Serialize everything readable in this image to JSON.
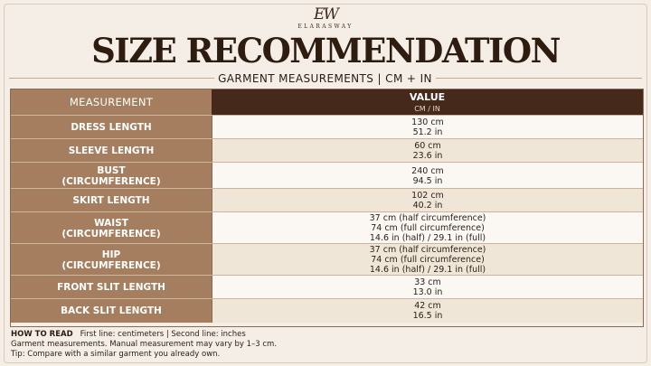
{
  "brand": {
    "monogram": "EW",
    "name": "ELARASWAY"
  },
  "title": "SIZE RECOMMENDATION",
  "subtitle": "GARMENT MEASUREMENTS | CM + IN",
  "table": {
    "col_measurement": "MEASUREMENT",
    "col_value": "VALUE",
    "col_value_unit": "CM / IN",
    "rows": [
      {
        "measurement": [
          "DRESS LENGTH"
        ],
        "values": [
          "130 cm",
          "51.2 in"
        ]
      },
      {
        "measurement": [
          "SLEEVE LENGTH"
        ],
        "values": [
          "60 cm",
          "23.6 in"
        ]
      },
      {
        "measurement": [
          "BUST",
          "(CIRCUMFERENCE)"
        ],
        "values": [
          "240 cm",
          "94.5 in"
        ]
      },
      {
        "measurement": [
          "SKIRT LENGTH"
        ],
        "values": [
          "102 cm",
          "40.2 in"
        ]
      },
      {
        "measurement": [
          "WAIST",
          "(CIRCUMFERENCE)"
        ],
        "values": [
          "37 cm (half circumference)",
          "74 cm (full circumference)",
          "14.6 in (half)  /  29.1 in (full)"
        ]
      },
      {
        "measurement": [
          "HIP",
          "(CIRCUMFERENCE)"
        ],
        "values": [
          "37 cm (half circumference)",
          "74 cm (full circumference)",
          "14.6 in (half)  /  29.1 in (full)"
        ]
      },
      {
        "measurement": [
          "FRONT SLIT LENGTH"
        ],
        "values": [
          "33 cm",
          "13.0 in"
        ]
      },
      {
        "measurement": [
          "BACK SLIT LENGTH"
        ],
        "values": [
          "42 cm",
          "16.5 in"
        ]
      }
    ]
  },
  "how_to_read": {
    "label": "HOW TO READ",
    "legend": "First line: centimeters  |  Second line: inches",
    "note": "Garment measurements. Manual measurement may vary by 1–3 cm.",
    "tip": "Tip: Compare with a similar garment you already own."
  }
}
